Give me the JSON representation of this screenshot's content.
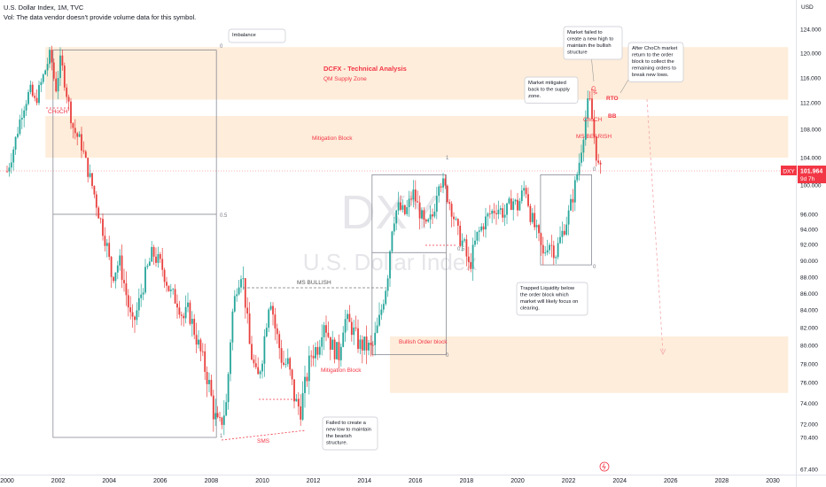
{
  "header": {
    "title": "U.S. Dollar Index, 1M, TVC",
    "volume_note": "Vol: The data vendor doesn't provide volume data for this symbol."
  },
  "watermark": {
    "symbol": "DXY",
    "name": "U.S. Dollar Index"
  },
  "price_scale": {
    "currency": "USD",
    "labels": [
      "124.000",
      "120.000",
      "116.000",
      "112.000",
      "108.000",
      "104.000",
      "100.000",
      "96.000",
      "94.000",
      "92.000",
      "90.000",
      "88.000",
      "86.000",
      "84.000",
      "82.000",
      "80.000",
      "78.000",
      "76.000",
      "74.000",
      "72.000",
      "70.400",
      "67.400"
    ],
    "values": [
      124,
      120,
      116,
      112,
      108,
      104,
      100,
      96,
      94,
      92,
      90,
      88,
      86,
      84,
      82,
      80,
      78,
      76,
      74,
      72,
      70.4,
      67.4
    ]
  },
  "last_price": {
    "symbol": "DXY",
    "value": "101.964",
    "countdown": "9d 7h",
    "numeric": 101.964
  },
  "time_scale": {
    "labels": [
      "2000",
      "2002",
      "2004",
      "2006",
      "2008",
      "2010",
      "2012",
      "2014",
      "2016",
      "2018",
      "2020",
      "2022",
      "2024",
      "2026",
      "2028",
      "2030"
    ],
    "years": [
      2000,
      2002,
      2004,
      2006,
      2008,
      2010,
      2012,
      2014,
      2016,
      2018,
      2020,
      2022,
      2024,
      2026,
      2028,
      2030
    ]
  },
  "annotations": {
    "title": "DCFX - Technical Analysis",
    "subtitle": "QM Supply Zone",
    "mitigation_block_top": "Mitigation Block",
    "ms_bullish": "MS BULLISH",
    "bullish_order_block": "Bullish Order block",
    "mitigation_block_bottom": "Mitigation Block",
    "choch_left": "CHoCH",
    "sms": "SMS",
    "rto": "RTO",
    "bb": "BB",
    "choch_right": "ChoCH",
    "ms_bearish": "MS BEARISH",
    "qm": "QM",
    "fib_1": "1",
    "fib_05": "0.5",
    "fib_0": "0"
  },
  "callouts": {
    "imbalance": [
      "Imbalance"
    ],
    "market_failed_high": [
      "Market failed to",
      "create a new high to",
      "maintain the bullish",
      "structure"
    ],
    "after_choch": [
      "After ChoCh market",
      "return to the order",
      "block to collect the",
      "remaining orders to",
      "break new lows."
    ],
    "market_mitigated": [
      "Market mitigated",
      "back to the supply",
      "zone."
    ],
    "trapped_liquidity": [
      "Trapped Liquidity below",
      "the order block which",
      "market will likely focus on",
      "clearing."
    ],
    "failed_low": [
      "Failed to create a",
      "new low to maintain",
      "the bearish",
      "structure."
    ]
  },
  "colors": {
    "up": "#26a69a",
    "down": "#ef5350",
    "candle": "#e8403e",
    "zone": "#fde7cf",
    "annotation_red": "#f23645",
    "last_price_bg": "#f23645"
  },
  "chart_data": {
    "type": "candlestick",
    "title": "U.S. Dollar Index, 1M, TVC",
    "symbol": "DXY",
    "x_unit": "year",
    "ylim": [
      67.4,
      126
    ],
    "xlim": [
      2000.0,
      2030.6
    ],
    "last_close": 101.964,
    "path": [
      [
        2000.0,
        102.0
      ],
      [
        2000.3,
        106.0
      ],
      [
        2000.6,
        111.0
      ],
      [
        2000.9,
        114.0
      ],
      [
        2001.1,
        112.0
      ],
      [
        2001.4,
        116.0
      ],
      [
        2001.7,
        120.0
      ],
      [
        2001.9,
        114.0
      ],
      [
        2002.1,
        119.0
      ],
      [
        2002.4,
        112.0
      ],
      [
        2002.6,
        108.0
      ],
      [
        2002.9,
        106.0
      ],
      [
        2003.1,
        103.0
      ],
      [
        2003.4,
        99.0
      ],
      [
        2003.6,
        96.0
      ],
      [
        2003.9,
        92.0
      ],
      [
        2004.1,
        88.0
      ],
      [
        2004.4,
        90.0
      ],
      [
        2004.6,
        87.0
      ],
      [
        2004.9,
        82.0
      ],
      [
        2005.1,
        84.0
      ],
      [
        2005.4,
        88.0
      ],
      [
        2005.7,
        91.0
      ],
      [
        2005.9,
        90.0
      ],
      [
        2006.1,
        89.0
      ],
      [
        2006.4,
        86.0
      ],
      [
        2006.7,
        85.0
      ],
      [
        2006.9,
        83.0
      ],
      [
        2007.1,
        84.0
      ],
      [
        2007.4,
        81.0
      ],
      [
        2007.7,
        78.0
      ],
      [
        2007.9,
        76.0
      ],
      [
        2008.1,
        73.0
      ],
      [
        2008.3,
        71.5
      ],
      [
        2008.6,
        74.0
      ],
      [
        2008.8,
        83.0
      ],
      [
        2009.0,
        87.0
      ],
      [
        2009.2,
        89.0
      ],
      [
        2009.5,
        80.0
      ],
      [
        2009.8,
        76.0
      ],
      [
        2010.0,
        79.0
      ],
      [
        2010.3,
        86.0
      ],
      [
        2010.5,
        82.0
      ],
      [
        2010.8,
        78.0
      ],
      [
        2011.0,
        78.0
      ],
      [
        2011.3,
        74.0
      ],
      [
        2011.5,
        73.5
      ],
      [
        2011.7,
        76.0
      ],
      [
        2011.9,
        79.0
      ],
      [
        2012.2,
        80.0
      ],
      [
        2012.4,
        83.0
      ],
      [
        2012.7,
        80.0
      ],
      [
        2013.0,
        79.0
      ],
      [
        2013.2,
        83.0
      ],
      [
        2013.5,
        82.0
      ],
      [
        2013.8,
        80.0
      ],
      [
        2014.0,
        80.0
      ],
      [
        2014.3,
        79.5
      ],
      [
        2014.6,
        83.0
      ],
      [
        2014.9,
        88.0
      ],
      [
        2015.1,
        95.0
      ],
      [
        2015.3,
        97.0
      ],
      [
        2015.6,
        96.0
      ],
      [
        2015.9,
        99.0
      ],
      [
        2016.1,
        97.0
      ],
      [
        2016.4,
        94.0
      ],
      [
        2016.7,
        96.0
      ],
      [
        2016.9,
        101.0
      ],
      [
        2017.1,
        100.0
      ],
      [
        2017.4,
        97.0
      ],
      [
        2017.7,
        93.0
      ],
      [
        2017.9,
        92.0
      ],
      [
        2018.1,
        89.0
      ],
      [
        2018.4,
        93.0
      ],
      [
        2018.7,
        95.0
      ],
      [
        2018.9,
        96.0
      ],
      [
        2019.2,
        97.0
      ],
      [
        2019.5,
        96.0
      ],
      [
        2019.8,
        98.0
      ],
      [
        2020.0,
        97.0
      ],
      [
        2020.3,
        100.0
      ],
      [
        2020.5,
        96.0
      ],
      [
        2020.8,
        93.0
      ],
      [
        2021.0,
        90.5
      ],
      [
        2021.2,
        92.5
      ],
      [
        2021.5,
        91.0
      ],
      [
        2021.8,
        94.0
      ],
      [
        2022.0,
        96.0
      ],
      [
        2022.2,
        99.0
      ],
      [
        2022.4,
        103.0
      ],
      [
        2022.6,
        108.0
      ],
      [
        2022.8,
        113.0
      ],
      [
        2022.9,
        110.0
      ],
      [
        2023.1,
        104.0
      ],
      [
        2023.2,
        102.0
      ],
      [
        2023.3,
        101.964
      ]
    ],
    "fib_levels": [
      {
        "label": "1",
        "from": 2001.8,
        "to": 2008.2,
        "price": 120.5
      },
      {
        "label": "0.5",
        "from": 2001.8,
        "to": 2008.2,
        "price": 96.0
      },
      {
        "label": "1",
        "from": 2014.3,
        "to": 2017.2,
        "price": 101.5
      },
      {
        "label": "0.5",
        "from": 2014.3,
        "to": 2017.2,
        "price": 91.0
      },
      {
        "label": "0",
        "from": 2014.3,
        "to": 2017.2,
        "price": 79.0
      },
      {
        "label": "0",
        "from": 2020.9,
        "to": 2022.9,
        "price": 101.5
      },
      {
        "label": "0",
        "from": 2020.9,
        "to": 2022.9,
        "price": 89.5
      }
    ],
    "zones": [
      {
        "name": "QM Supply Zone",
        "from": 2001.5,
        "to": 2030.6,
        "top": 121.0,
        "bottom": 112.5
      },
      {
        "name": "Mitigation Block",
        "from": 2001.5,
        "to": 2030.6,
        "top": 110.0,
        "bottom": 104.0
      },
      {
        "name": "Bullish Order block",
        "from": 2015.0,
        "to": 2030.6,
        "top": 81.0,
        "bottom": 79.0
      },
      {
        "name": "Mitigation Block",
        "from": 2015.0,
        "to": 2030.6,
        "top": 79.0,
        "bottom": 75.0
      }
    ]
  }
}
